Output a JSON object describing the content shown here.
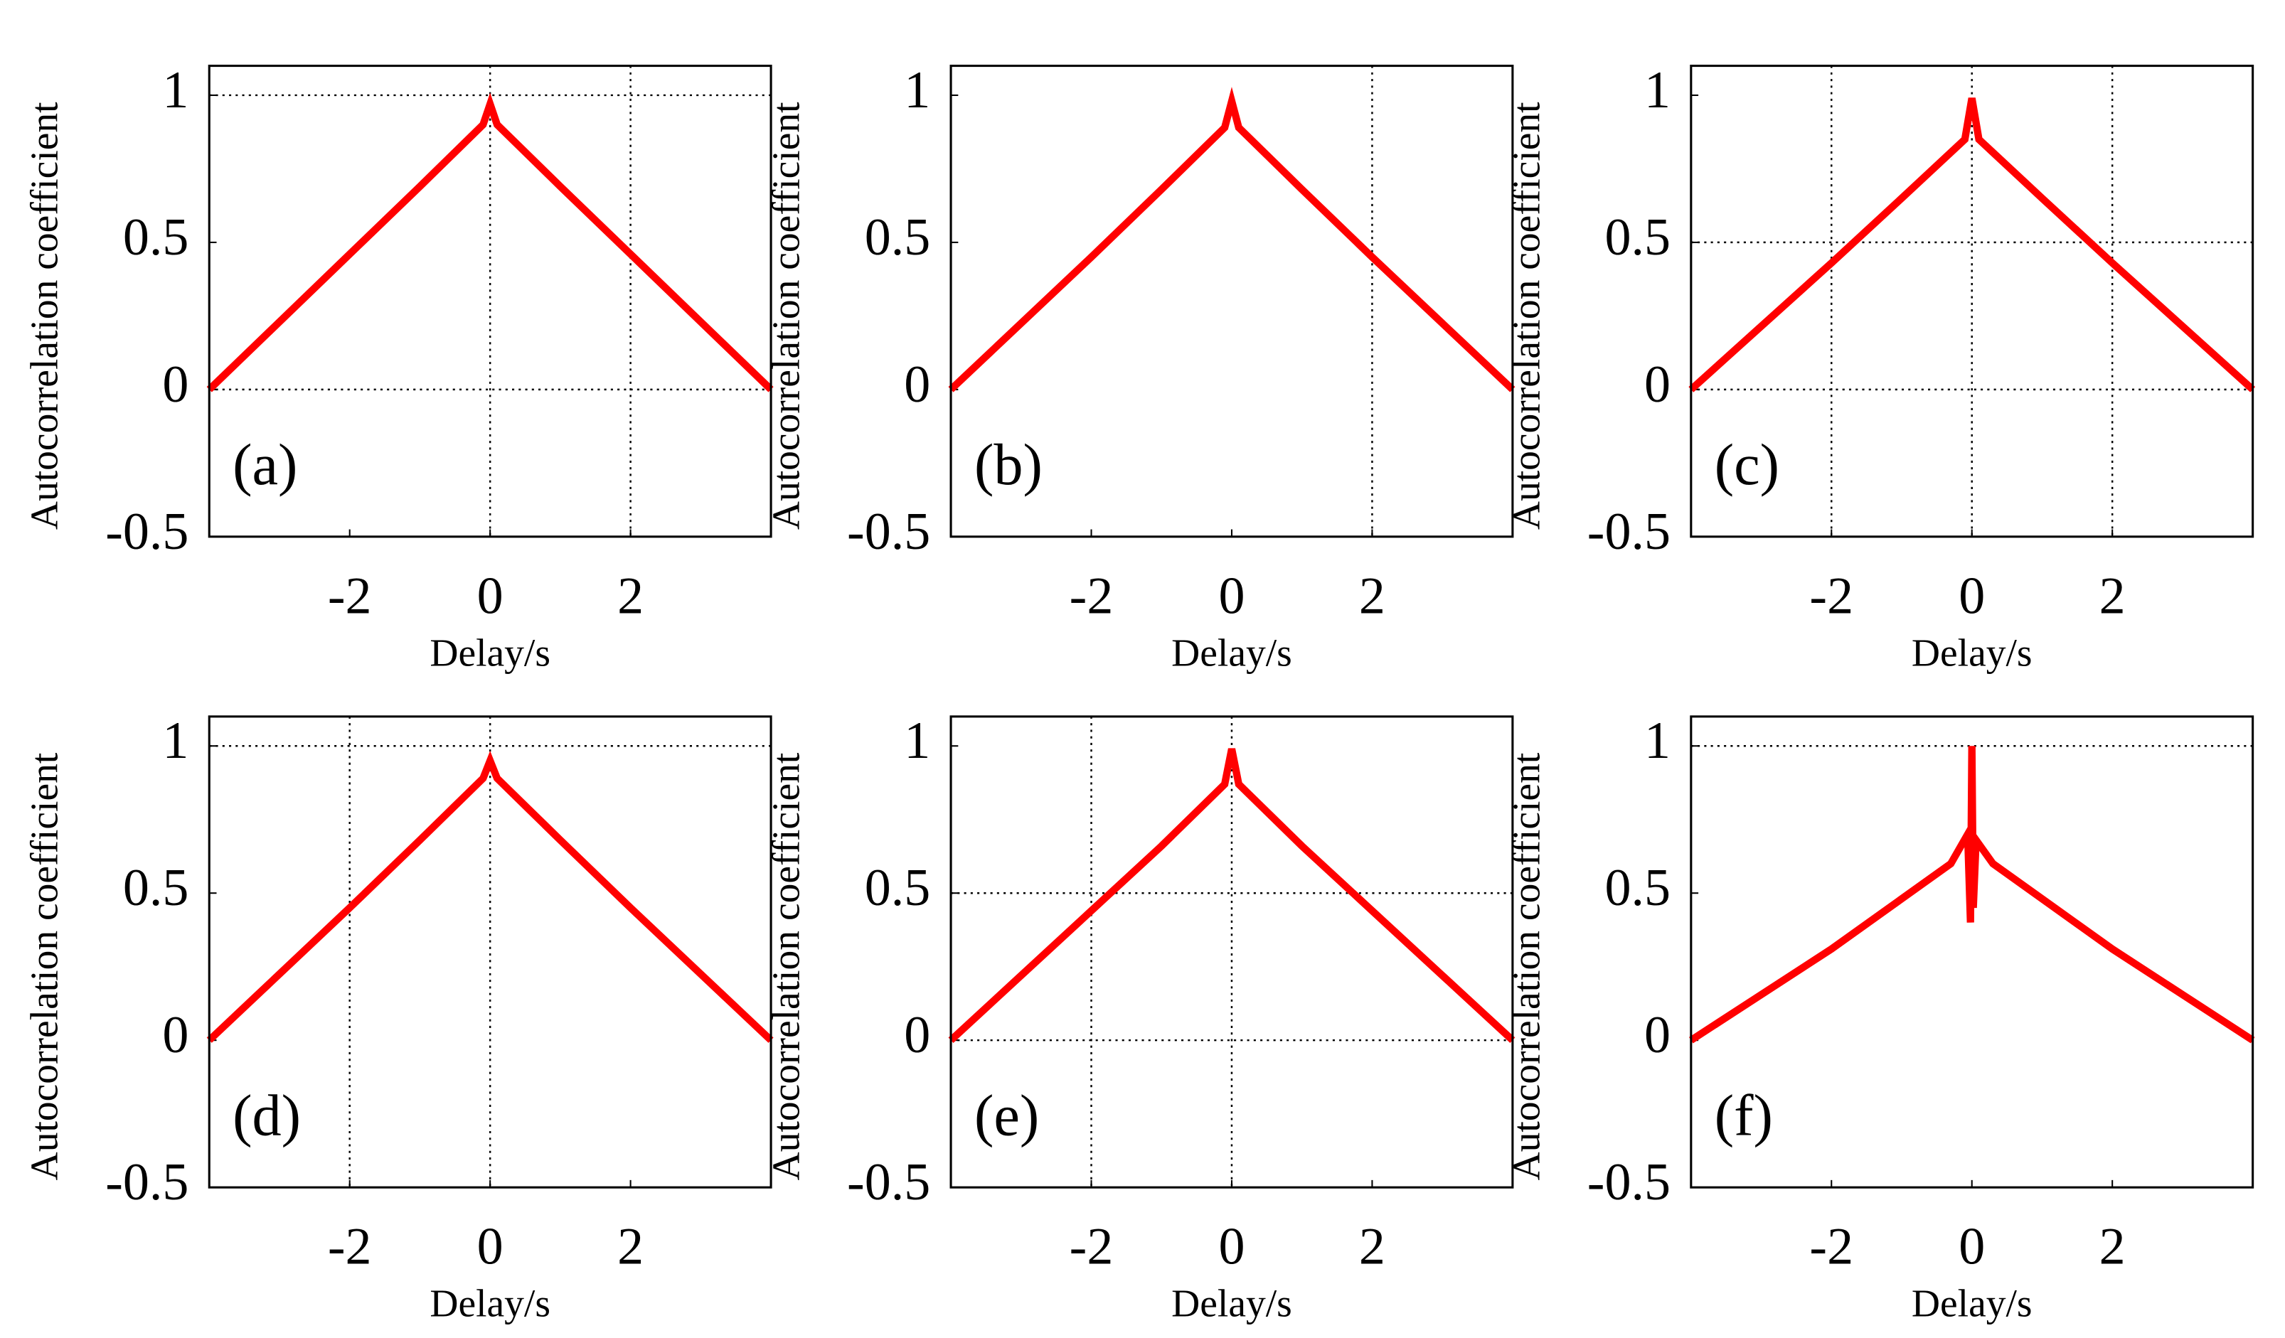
{
  "chart_data": [
    {
      "type": "line",
      "annotation": "(a)",
      "xlabel": "Delay/s",
      "ylabel": "Autocorrelation coefficient",
      "xlim": [
        -4,
        4
      ],
      "ylim": [
        -0.5,
        1.1
      ],
      "xticks": [
        -2,
        0,
        2
      ],
      "yticks": [
        -0.5,
        0,
        0.5,
        1
      ],
      "grid_x": [
        0,
        2
      ],
      "grid_y": [
        0,
        1
      ],
      "color": "#ff0000",
      "x": [
        -4,
        -2,
        -1,
        -0.1,
        0,
        0.1,
        1,
        2,
        4
      ],
      "values": [
        0,
        0.46,
        0.69,
        0.9,
        0.97,
        0.9,
        0.69,
        0.46,
        0
      ]
    },
    {
      "type": "line",
      "annotation": "(b)",
      "xlabel": "Delay/s",
      "ylabel": "Autocorrelation coefficient",
      "xlim": [
        -4,
        4
      ],
      "ylim": [
        -0.5,
        1.1
      ],
      "xticks": [
        -2,
        0,
        2
      ],
      "yticks": [
        -0.5,
        0,
        0.5,
        1
      ],
      "grid_x": [
        2
      ],
      "grid_y": [],
      "color": "#ff0000",
      "x": [
        -4,
        -2,
        -1,
        -0.1,
        0,
        0.1,
        1,
        2,
        4
      ],
      "values": [
        0,
        0.45,
        0.68,
        0.89,
        0.98,
        0.89,
        0.68,
        0.45,
        0
      ]
    },
    {
      "type": "line",
      "annotation": "(c)",
      "xlabel": "Delay/s",
      "ylabel": "Autocorrelation coefficient",
      "xlim": [
        -4,
        4
      ],
      "ylim": [
        -0.5,
        1.1
      ],
      "xticks": [
        -2,
        0,
        2
      ],
      "yticks": [
        -0.5,
        0,
        0.5,
        1
      ],
      "grid_x": [
        -2,
        0,
        2
      ],
      "grid_y": [
        0,
        0.5
      ],
      "color": "#ff0000",
      "x": [
        -4,
        -2,
        -1,
        -0.1,
        0,
        0.1,
        1,
        2,
        4
      ],
      "values": [
        0,
        0.43,
        0.65,
        0.85,
        0.99,
        0.85,
        0.65,
        0.43,
        0
      ]
    },
    {
      "type": "line",
      "annotation": "(d)",
      "xlabel": "Delay/s",
      "ylabel": "Autocorrelation coefficient",
      "xlim": [
        -4,
        4
      ],
      "ylim": [
        -0.5,
        1.1
      ],
      "xticks": [
        -2,
        0,
        2
      ],
      "yticks": [
        -0.5,
        0,
        0.5,
        1
      ],
      "grid_x": [
        -2,
        0
      ],
      "grid_y": [
        1
      ],
      "color": "#ff0000",
      "x": [
        -4,
        -2,
        -1,
        -0.1,
        0,
        0.1,
        1,
        2,
        4
      ],
      "values": [
        0,
        0.45,
        0.68,
        0.89,
        0.95,
        0.89,
        0.68,
        0.45,
        0
      ]
    },
    {
      "type": "line",
      "annotation": "(e)",
      "xlabel": "Delay/s",
      "ylabel": "Autocorrelation coefficient",
      "xlim": [
        -4,
        4
      ],
      "ylim": [
        -0.5,
        1.1
      ],
      "xticks": [
        -2,
        0,
        2
      ],
      "yticks": [
        -0.5,
        0,
        0.5,
        1
      ],
      "grid_x": [
        -2,
        0
      ],
      "grid_y": [
        0,
        0.5
      ],
      "color": "#ff0000",
      "x": [
        -4,
        -2,
        -1,
        -0.1,
        0,
        0.1,
        1,
        2,
        4
      ],
      "values": [
        0,
        0.44,
        0.66,
        0.87,
        0.99,
        0.87,
        0.66,
        0.44,
        0
      ]
    },
    {
      "type": "line",
      "annotation": "(f)",
      "xlabel": "Delay/s",
      "ylabel": "Autocorrelation coefficient",
      "xlim": [
        -4,
        4
      ],
      "ylim": [
        -0.5,
        1.1
      ],
      "xticks": [
        -2,
        0,
        2
      ],
      "yticks": [
        -0.5,
        0,
        0.5,
        1
      ],
      "grid_x": [],
      "grid_y": [
        1
      ],
      "color": "#ff0000",
      "x": [
        -4,
        -2,
        -0.3,
        -0.06,
        -0.02,
        0,
        0.02,
        0.06,
        0.3,
        2,
        4
      ],
      "values": [
        0,
        0.31,
        0.6,
        0.7,
        0.4,
        1,
        0.45,
        0.68,
        0.6,
        0.31,
        0
      ]
    }
  ]
}
